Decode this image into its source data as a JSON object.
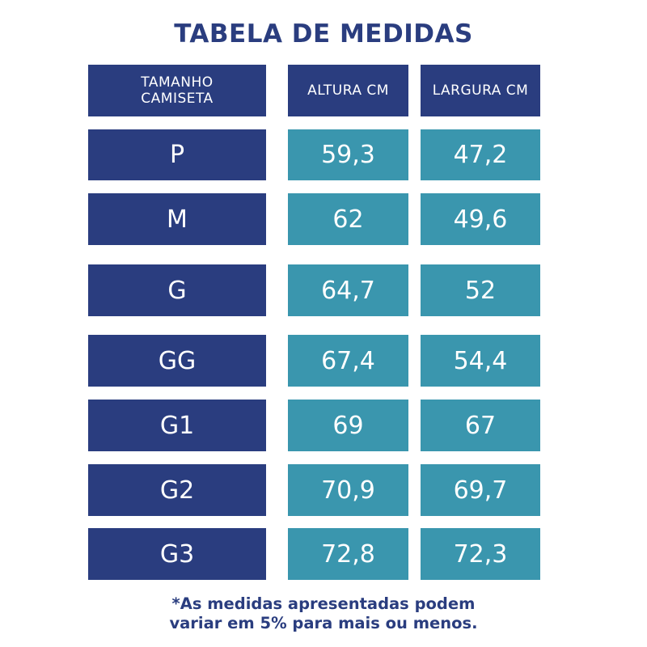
{
  "title": "TABELA DE MEDIDAS",
  "headers": {
    "size": "TAMANHO\nCAMISETA",
    "height": "ALTURA CM",
    "width": "LARGURA CM"
  },
  "rows": [
    {
      "size": "P",
      "altura": "59,3",
      "largura": "47,2"
    },
    {
      "size": "M",
      "altura": "62",
      "largura": "49,6"
    },
    {
      "size": "G",
      "altura": "64,7",
      "largura": "52"
    },
    {
      "size": "GG",
      "altura": "67,4",
      "largura": "54,4"
    },
    {
      "size": "G1",
      "altura": "69",
      "largura": "67"
    },
    {
      "size": "G2",
      "altura": "70,9",
      "largura": "69,7"
    },
    {
      "size": "G3",
      "altura": "72,8",
      "largura": "72,3"
    }
  ],
  "note": "*As medidas apresentadas podem\nvariar em 5% para mais ou menos.",
  "colors": {
    "navy": "#2a3d7f",
    "teal": "#3a96ae"
  }
}
